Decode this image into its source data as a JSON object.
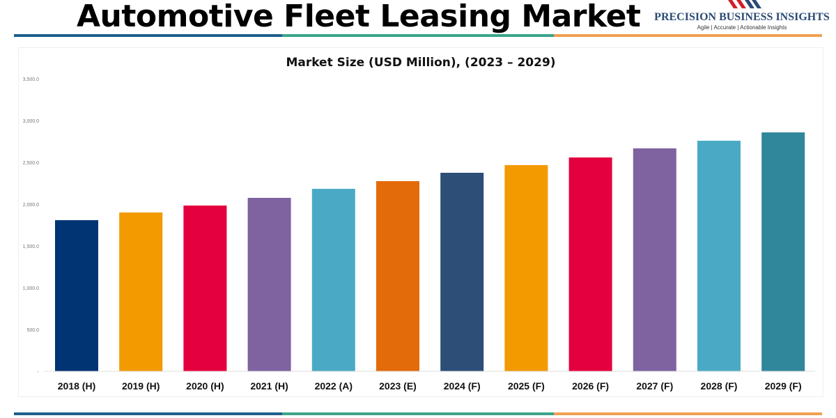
{
  "header": {
    "title": "Automotive Fleet Leasing Market"
  },
  "logo": {
    "name": "PRECISION BUSINESS INSIGHTS",
    "tagline": "Agile | Accurate | Actionable Insights"
  },
  "colors": {
    "line_blue": "#1f5f8b",
    "line_green": "#3aa58a",
    "line_orange": "#f0a050"
  },
  "chart_data": {
    "type": "bar",
    "title": "Market Size (USD Million), (2023 – 2029)",
    "categories": [
      "2018 (H)",
      "2019 (H)",
      "2020 (H)",
      "2021 (H)",
      "2022 (A)",
      "2023 (E)",
      "2024 (F)",
      "2025 (F)",
      "2026 (F)",
      "2027 (F)",
      "2028 (F)",
      "2029 (F)"
    ],
    "values": [
      1808,
      1900,
      1983,
      2075,
      2183,
      2275,
      2375,
      2467,
      2558,
      2667,
      2758,
      2858
    ],
    "colors": [
      "#003473",
      "#f29a00",
      "#e4003f",
      "#7f63a0",
      "#4aaac5",
      "#e36b0a",
      "#2c4e77",
      "#f29a00",
      "#e4003f",
      "#7f63a0",
      "#4aaac5",
      "#30879b"
    ],
    "yticks": [
      "-",
      "500.0",
      "1,000.0",
      "1,500.0",
      "2,000.0",
      "2,500.0",
      "3,000.0",
      "3,500.0"
    ],
    "ylim": [
      0,
      3500
    ],
    "grid": false
  }
}
